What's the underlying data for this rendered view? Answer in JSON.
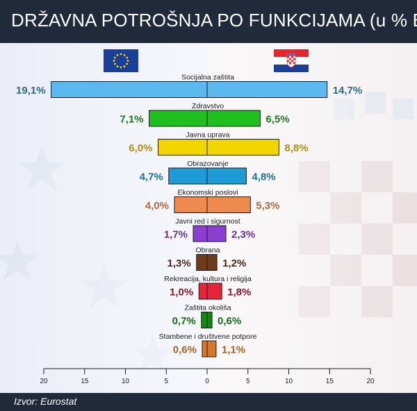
{
  "title": "DRŽAVNA POTROŠNJA PO FUNKCIJAMA (u % BDP-a)",
  "source": "Izvor: Eurostat",
  "left_flag_icon": "eu-flag-icon",
  "right_flag_icon": "croatia-flag-icon",
  "chart_data": {
    "type": "bar",
    "orientation": "horizontal",
    "layout": "butterfly",
    "categories": [
      "Socijalna zaštita",
      "Zdravstvo",
      "Javna uprava",
      "Obrazovanje",
      "Ekonomski poslovi",
      "Javni red i sigurnost",
      "Obrana",
      "Rekreacija, kultura i religija",
      "Zaštita okoliša",
      "Stambene i društvene potpore"
    ],
    "series": [
      {
        "side": "left",
        "values": [
          19.1,
          7.1,
          6.0,
          4.7,
          4.0,
          1.7,
          1.3,
          1.0,
          0.7,
          0.6
        ],
        "labels": [
          "19,1%",
          "7,1%",
          "6,0%",
          "4,7%",
          "4,0%",
          "1,7%",
          "1,3%",
          "1,0%",
          "0,7%",
          "0,6%"
        ]
      },
      {
        "side": "right",
        "values": [
          14.7,
          6.5,
          8.8,
          4.8,
          5.3,
          2.3,
          1.2,
          1.8,
          0.6,
          1.1
        ],
        "labels": [
          "14,7%",
          "6,5%",
          "8,8%",
          "4,8%",
          "5,3%",
          "2,3%",
          "1,2%",
          "1,8%",
          "0,6%",
          "1,1%"
        ]
      }
    ],
    "colors": [
      "#5bb9f0",
      "#1fbf1f",
      "#f2d600",
      "#1d9bd6",
      "#ee8a4e",
      "#8a3fd1",
      "#6e3b1a",
      "#e8243a",
      "#128a12",
      "#d9772a"
    ],
    "label_colors": [
      "#2d6a8a",
      "#1d7a1d",
      "#b08f12",
      "#1f6f8f",
      "#b36a3c",
      "#6a2f9a",
      "#4a2a14",
      "#8a1a2a",
      "#136f13",
      "#a8641e"
    ],
    "x_axis": {
      "range": [
        -20,
        20
      ],
      "ticks": [
        -20,
        -15,
        -10,
        -5,
        0,
        5,
        10,
        15,
        20
      ],
      "tick_labels": [
        "20",
        "15",
        "10",
        "5",
        "0",
        "5",
        "10",
        "15",
        "20"
      ]
    }
  }
}
